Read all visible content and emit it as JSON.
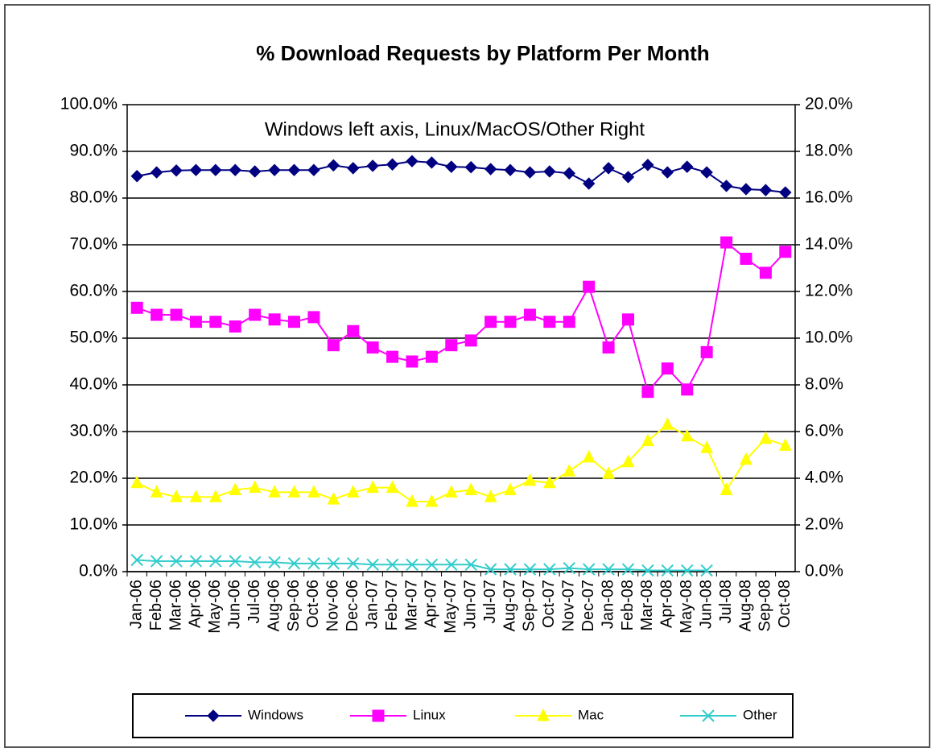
{
  "chart_data": {
    "type": "line",
    "title": "% Download Requests  by Platform Per Month",
    "annotation": "Windows left axis, Linux/MacOS/Other Right",
    "categories": [
      "Jan-06",
      "Feb-06",
      "Mar-06",
      "Apr-06",
      "May-06",
      "Jun-06",
      "Jul-06",
      "Aug-06",
      "Sep-06",
      "Oct-06",
      "Nov-06",
      "Dec-06",
      "Jan-07",
      "Feb-07",
      "Mar-07",
      "Apr-07",
      "May-07",
      "Jun-07",
      "Jul-07",
      "Aug-07",
      "Sep-07",
      "Oct-07",
      "Nov-07",
      "Dec-07",
      "Jan-08",
      "Feb-08",
      "Mar-08",
      "Apr-08",
      "May-08",
      "Jun-08",
      "Jul-08",
      "Aug-08",
      "Sep-08",
      "Oct-08"
    ],
    "series": [
      {
        "name": "Windows",
        "color": "#000080",
        "marker": "diamond",
        "axis": "y",
        "values": [
          84.7,
          85.5,
          85.9,
          86,
          86,
          86,
          85.7,
          86,
          86,
          86,
          87,
          86.4,
          86.9,
          87.2,
          87.9,
          87.6,
          86.7,
          86.6,
          86.2,
          86,
          85.5,
          85.7,
          85.3,
          83.1,
          86.4,
          84.5,
          87.1,
          85.5,
          86.7,
          85.5,
          82.6,
          81.9,
          81.7,
          81.2
        ]
      },
      {
        "name": "Linux",
        "color": "#ff00ff",
        "marker": "square",
        "axis": "y2",
        "values": [
          11.3,
          11.0,
          11.0,
          10.7,
          10.7,
          10.5,
          11.0,
          10.8,
          10.7,
          10.9,
          9.7,
          10.3,
          9.6,
          9.2,
          9.0,
          9.2,
          9.7,
          9.9,
          10.7,
          10.7,
          11.0,
          10.7,
          10.7,
          12.2,
          9.6,
          10.8,
          7.7,
          8.7,
          7.8,
          9.4,
          14.1,
          13.4,
          12.8,
          13.7
        ]
      },
      {
        "name": "Mac",
        "color": "#ffff00",
        "marker": "triangle",
        "axis": "y2",
        "values": [
          3.8,
          3.4,
          3.2,
          3.2,
          3.2,
          3.5,
          3.6,
          3.4,
          3.4,
          3.4,
          3.1,
          3.4,
          3.6,
          3.6,
          3.0,
          3.0,
          3.4,
          3.5,
          3.2,
          3.5,
          3.9,
          3.8,
          4.3,
          4.9,
          4.2,
          4.7,
          5.6,
          6.3,
          5.8,
          5.3,
          3.5,
          4.8,
          5.7,
          5.4
        ]
      },
      {
        "name": "Other",
        "color": "#33cccc",
        "marker": "x",
        "axis": "y2",
        "values": [
          0.5,
          0.45,
          0.45,
          0.45,
          0.45,
          0.45,
          0.4,
          0.4,
          0.35,
          0.35,
          0.35,
          0.35,
          0.3,
          0.3,
          0.3,
          0.3,
          0.3,
          0.3,
          0.1,
          0.1,
          0.1,
          0.1,
          0.15,
          0.1,
          0.1,
          0.1,
          0.05,
          0.05,
          0.05,
          0.05,
          null,
          null,
          null,
          null
        ]
      }
    ],
    "ylim": [
      0,
      100
    ],
    "yticks": [
      {
        "value": 0,
        "label": "0.0%"
      },
      {
        "value": 10,
        "label": "10.0%"
      },
      {
        "value": 20,
        "label": "20.0%"
      },
      {
        "value": 30,
        "label": "30.0%"
      },
      {
        "value": 40,
        "label": "40.0%"
      },
      {
        "value": 50,
        "label": "50.0%"
      },
      {
        "value": 60,
        "label": "60.0%"
      },
      {
        "value": 70,
        "label": "70.0%"
      },
      {
        "value": 80,
        "label": "80.0%"
      },
      {
        "value": 90,
        "label": "90.0%"
      },
      {
        "value": 100,
        "label": "100.0%"
      }
    ],
    "y2lim": [
      0,
      20
    ],
    "y2ticks": [
      {
        "value": 0,
        "label": "0.0%"
      },
      {
        "value": 2,
        "label": "2.0%"
      },
      {
        "value": 4,
        "label": "4.0%"
      },
      {
        "value": 6,
        "label": "6.0%"
      },
      {
        "value": 8,
        "label": "8.0%"
      },
      {
        "value": 10,
        "label": "10.0%"
      },
      {
        "value": 12,
        "label": "12.0%"
      },
      {
        "value": 14,
        "label": "14.0%"
      },
      {
        "value": 16,
        "label": "16.0%"
      },
      {
        "value": 18,
        "label": "18.0%"
      },
      {
        "value": 20,
        "label": "20.0%"
      }
    ],
    "grid": true,
    "legend": "bottom"
  }
}
